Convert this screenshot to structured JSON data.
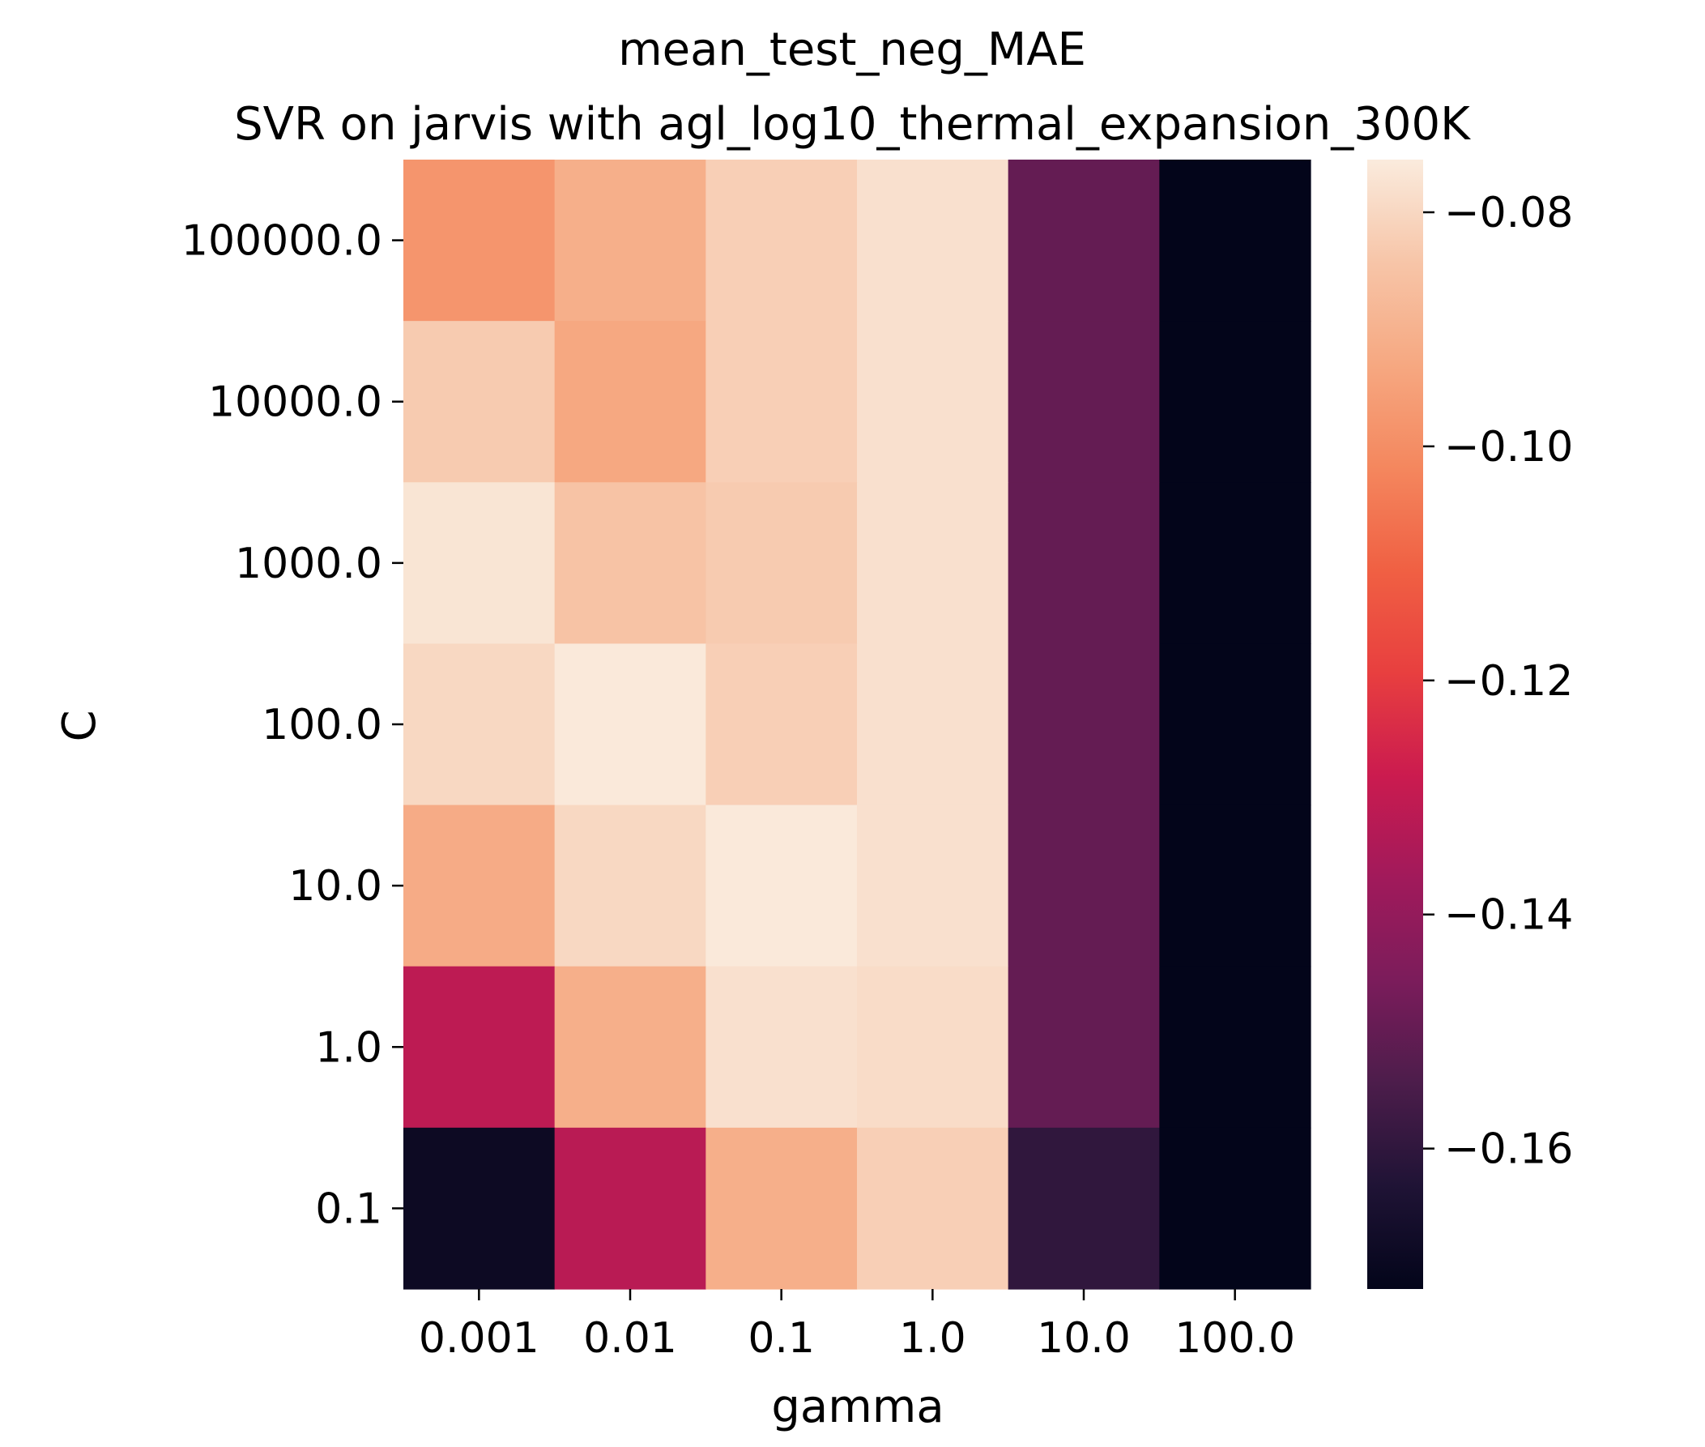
{
  "chart_data": {
    "type": "heatmap",
    "title_line1": "mean_test_neg_MAE",
    "title_line2": "SVR on jarvis with agl_log10_thermal_expansion_300K",
    "xlabel": "gamma",
    "ylabel": "C",
    "x_categories": [
      "0.001",
      "0.01",
      "0.1",
      "1.0",
      "10.0",
      "100.0"
    ],
    "y_categories": [
      "100000.0",
      "10000.0",
      "1000.0",
      "100.0",
      "10.0",
      "1.0",
      "0.1"
    ],
    "values": [
      [
        -0.098,
        -0.091,
        -0.082,
        -0.078,
        -0.15,
        -0.172
      ],
      [
        -0.083,
        -0.093,
        -0.082,
        -0.078,
        -0.15,
        -0.172
      ],
      [
        -0.077,
        -0.085,
        -0.083,
        -0.078,
        -0.15,
        -0.172
      ],
      [
        -0.08,
        -0.076,
        -0.082,
        -0.078,
        -0.15,
        -0.172
      ],
      [
        -0.092,
        -0.08,
        -0.076,
        -0.078,
        -0.15,
        -0.172
      ],
      [
        -0.131,
        -0.091,
        -0.078,
        -0.079,
        -0.15,
        -0.172
      ],
      [
        -0.169,
        -0.132,
        -0.091,
        -0.082,
        -0.16,
        -0.172
      ]
    ],
    "colorbar": {
      "min": -0.172,
      "max": -0.0755,
      "ticks": [
        -0.16,
        -0.14,
        -0.12,
        -0.1,
        -0.08
      ],
      "tick_labels": [
        "−0.16",
        "−0.14",
        "−0.12",
        "−0.10",
        "−0.08"
      ],
      "colormap": "rocket",
      "colormap_stops": [
        "#03051a",
        "#1f1335",
        "#4c1d4b",
        "#7b1c5b",
        "#a11a5b",
        "#cb1b4f",
        "#e83f3f",
        "#f06043",
        "#f4875e",
        "#f6a881",
        "#f7c5a8",
        "#faebdd"
      ]
    }
  }
}
